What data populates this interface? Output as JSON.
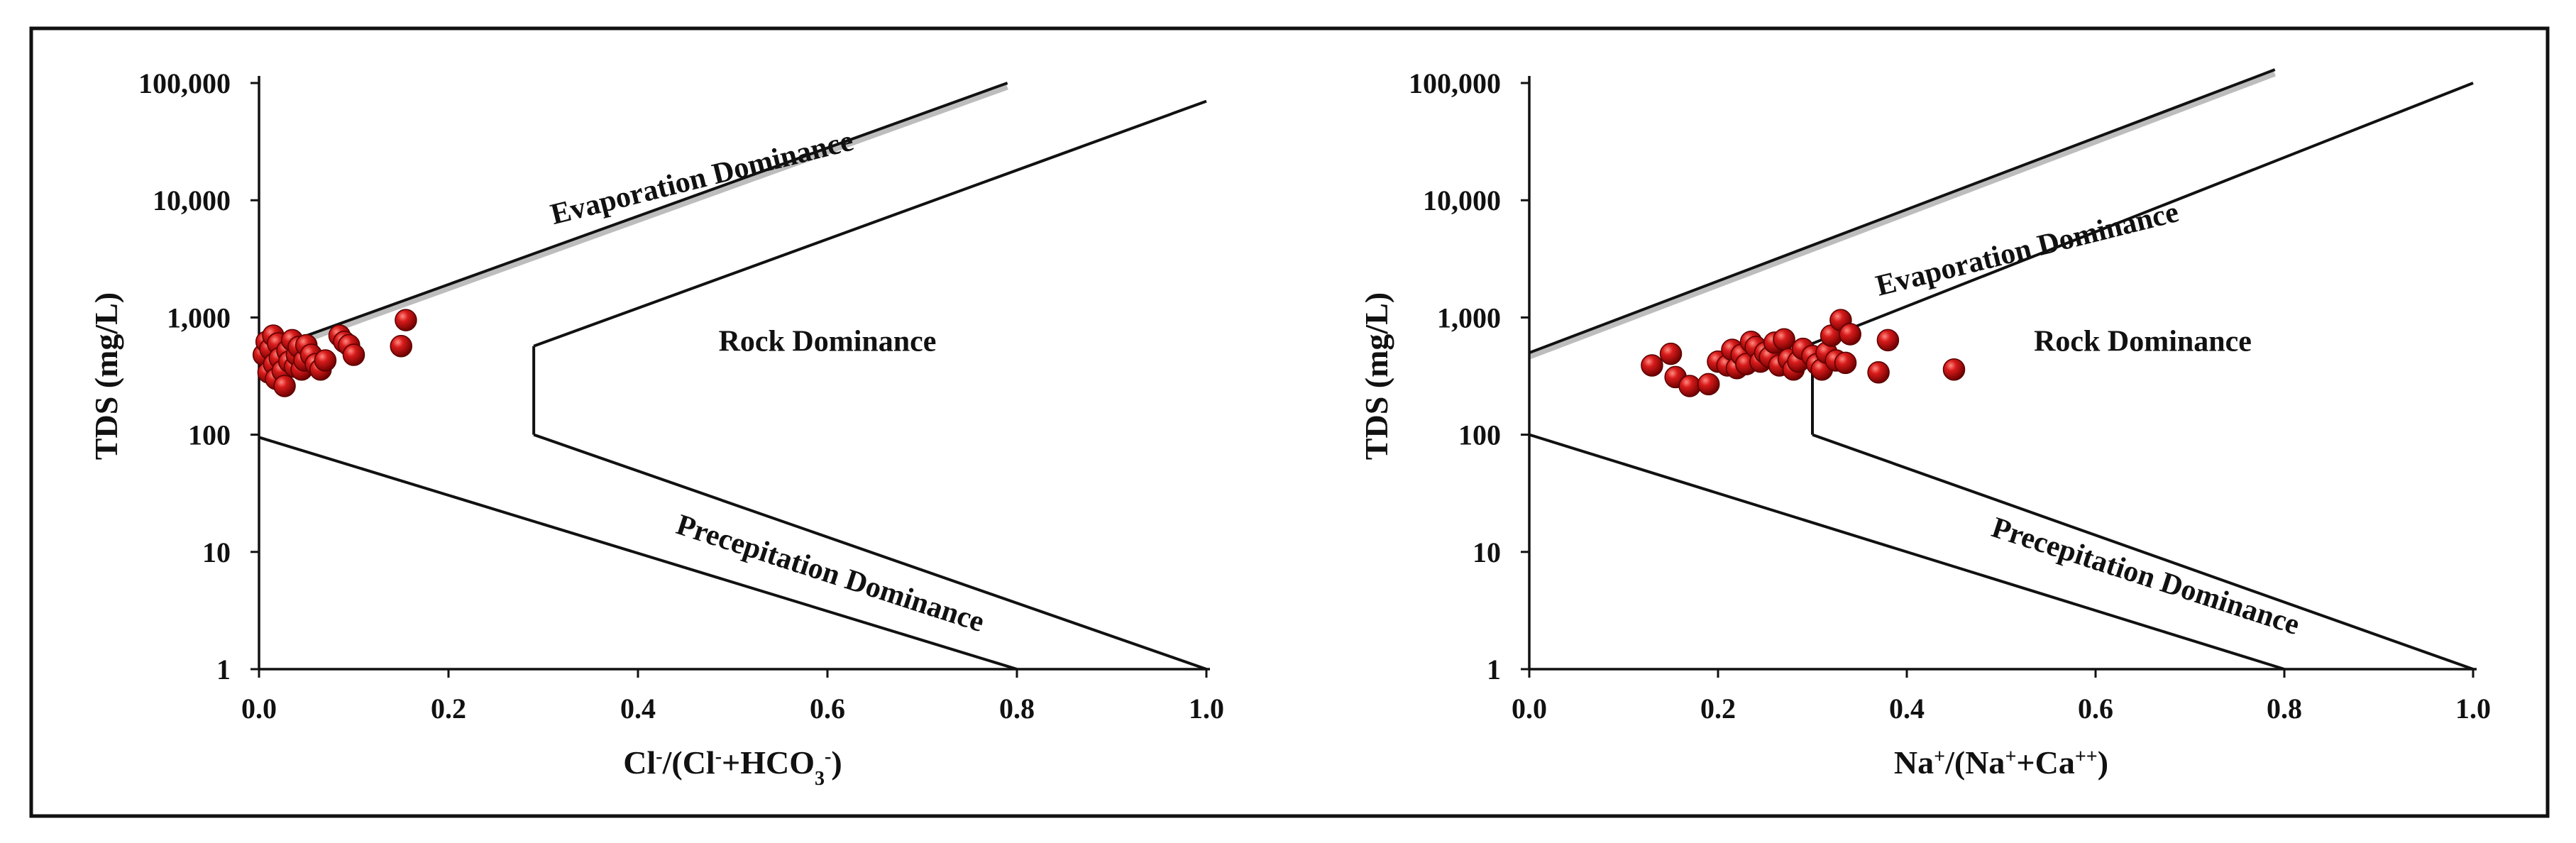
{
  "chart_data": [
    {
      "type": "scatter",
      "title": "",
      "xlabel": "Cl⁻/(Cl⁻+HCO₃⁻)",
      "xlabel_parts": [
        {
          "t": "Cl",
          "s": ""
        },
        {
          "t": "-",
          "s": "sup"
        },
        {
          "t": "/(Cl",
          "s": ""
        },
        {
          "t": "-",
          "s": "sup"
        },
        {
          "t": "+HCO",
          "s": ""
        },
        {
          "t": "3",
          "s": "sub"
        },
        {
          "t": "-",
          "s": "sup"
        },
        {
          "t": ")",
          "s": ""
        }
      ],
      "ylabel": "TDS (mg/L)",
      "y_scale": "log",
      "xlim": [
        0,
        1.0
      ],
      "ylim": [
        1,
        100000
      ],
      "x_ticks": [
        "0.0",
        "0.2",
        "0.4",
        "0.6",
        "0.8",
        "1.0"
      ],
      "y_ticks": [
        "1",
        "10",
        "100",
        "1,000",
        "10,000",
        "100,000"
      ],
      "marker_color": "#c00000",
      "regions": [
        {
          "label": "Evaporation Dominance",
          "x": 0.47,
          "y": 13000,
          "angle": -14
        },
        {
          "label": "Rock Dominance",
          "x": 0.6,
          "y": 520,
          "angle": 0
        },
        {
          "label": "Precepitation Dominance",
          "x": 0.6,
          "y": 5.5,
          "angle": 18
        }
      ],
      "boundaries": {
        "upper_left": [
          [
            0,
            500
          ],
          [
            0.79,
            100000
          ]
        ],
        "upper_right": [
          [
            0.29,
            570
          ],
          [
            1.0,
            70000
          ]
        ],
        "vertex": [
          [
            0.29,
            570
          ],
          [
            0.29,
            100
          ]
        ],
        "lower_right": [
          [
            0.29,
            100
          ],
          [
            1.0,
            1
          ]
        ],
        "lower_left": [
          [
            0,
            95
          ],
          [
            0.8,
            1
          ]
        ]
      },
      "points": [
        {
          "x": 0.005,
          "y": 480
        },
        {
          "x": 0.008,
          "y": 620
        },
        {
          "x": 0.01,
          "y": 340
        },
        {
          "x": 0.012,
          "y": 540
        },
        {
          "x": 0.015,
          "y": 700
        },
        {
          "x": 0.016,
          "y": 400
        },
        {
          "x": 0.018,
          "y": 300
        },
        {
          "x": 0.02,
          "y": 600
        },
        {
          "x": 0.022,
          "y": 450
        },
        {
          "x": 0.025,
          "y": 350
        },
        {
          "x": 0.027,
          "y": 260
        },
        {
          "x": 0.03,
          "y": 520
        },
        {
          "x": 0.032,
          "y": 420
        },
        {
          "x": 0.035,
          "y": 640
        },
        {
          "x": 0.038,
          "y": 380
        },
        {
          "x": 0.04,
          "y": 480
        },
        {
          "x": 0.042,
          "y": 560
        },
        {
          "x": 0.045,
          "y": 360
        },
        {
          "x": 0.048,
          "y": 430
        },
        {
          "x": 0.05,
          "y": 580
        },
        {
          "x": 0.055,
          "y": 480
        },
        {
          "x": 0.06,
          "y": 400
        },
        {
          "x": 0.065,
          "y": 360
        },
        {
          "x": 0.07,
          "y": 430
        },
        {
          "x": 0.085,
          "y": 700
        },
        {
          "x": 0.09,
          "y": 620
        },
        {
          "x": 0.095,
          "y": 580
        },
        {
          "x": 0.1,
          "y": 480
        },
        {
          "x": 0.15,
          "y": 570
        },
        {
          "x": 0.155,
          "y": 950
        }
      ]
    },
    {
      "type": "scatter",
      "title": "",
      "xlabel": "Na⁺/(Na⁺+Ca⁺⁺)",
      "xlabel_parts": [
        {
          "t": "Na",
          "s": ""
        },
        {
          "t": "+",
          "s": "sup"
        },
        {
          "t": "/(Na",
          "s": ""
        },
        {
          "t": "+",
          "s": "sup"
        },
        {
          "t": "+Ca",
          "s": ""
        },
        {
          "t": "++",
          "s": "sup"
        },
        {
          "t": ")",
          "s": ""
        }
      ],
      "ylabel": "TDS (mg/L)",
      "y_scale": "log",
      "xlim": [
        0,
        1.0
      ],
      "ylim": [
        1,
        100000
      ],
      "x_ticks": [
        "0.0",
        "0.2",
        "0.4",
        "0.6",
        "0.8",
        "1.0"
      ],
      "y_ticks": [
        "1",
        "10",
        "100",
        "1,000",
        "10,000",
        "100,000"
      ],
      "marker_color": "#c00000",
      "regions": [
        {
          "label": "Evaporation Dominance",
          "x": 0.53,
          "y": 3200,
          "angle": -14
        },
        {
          "label": "Rock Dominance",
          "x": 0.65,
          "y": 520,
          "angle": 0
        },
        {
          "label": "Precepitation Dominance",
          "x": 0.65,
          "y": 5.2,
          "angle": 18
        }
      ],
      "boundaries": {
        "upper_left": [
          [
            0,
            500
          ],
          [
            0.79,
            130000
          ]
        ],
        "upper_right": [
          [
            0.3,
            600
          ],
          [
            1.0,
            100000
          ]
        ],
        "vertex": [
          [
            0.3,
            600
          ],
          [
            0.3,
            100
          ]
        ],
        "lower_right": [
          [
            0.3,
            100
          ],
          [
            1.0,
            1
          ]
        ],
        "lower_left": [
          [
            0,
            100
          ],
          [
            0.8,
            1
          ]
        ]
      },
      "points": [
        {
          "x": 0.13,
          "y": 390
        },
        {
          "x": 0.15,
          "y": 490
        },
        {
          "x": 0.155,
          "y": 310
        },
        {
          "x": 0.17,
          "y": 260
        },
        {
          "x": 0.19,
          "y": 270
        },
        {
          "x": 0.2,
          "y": 420
        },
        {
          "x": 0.21,
          "y": 390
        },
        {
          "x": 0.215,
          "y": 530
        },
        {
          "x": 0.22,
          "y": 370
        },
        {
          "x": 0.225,
          "y": 480
        },
        {
          "x": 0.23,
          "y": 400
        },
        {
          "x": 0.235,
          "y": 620
        },
        {
          "x": 0.24,
          "y": 560
        },
        {
          "x": 0.245,
          "y": 420
        },
        {
          "x": 0.25,
          "y": 500
        },
        {
          "x": 0.255,
          "y": 460
        },
        {
          "x": 0.26,
          "y": 610
        },
        {
          "x": 0.265,
          "y": 390
        },
        {
          "x": 0.27,
          "y": 650
        },
        {
          "x": 0.275,
          "y": 440
        },
        {
          "x": 0.28,
          "y": 360
        },
        {
          "x": 0.285,
          "y": 420
        },
        {
          "x": 0.29,
          "y": 540
        },
        {
          "x": 0.3,
          "y": 470
        },
        {
          "x": 0.305,
          "y": 400
        },
        {
          "x": 0.31,
          "y": 360
        },
        {
          "x": 0.315,
          "y": 500
        },
        {
          "x": 0.32,
          "y": 700
        },
        {
          "x": 0.325,
          "y": 430
        },
        {
          "x": 0.33,
          "y": 950
        },
        {
          "x": 0.335,
          "y": 410
        },
        {
          "x": 0.34,
          "y": 720
        },
        {
          "x": 0.37,
          "y": 340
        },
        {
          "x": 0.38,
          "y": 640
        },
        {
          "x": 0.45,
          "y": 360
        }
      ]
    }
  ]
}
